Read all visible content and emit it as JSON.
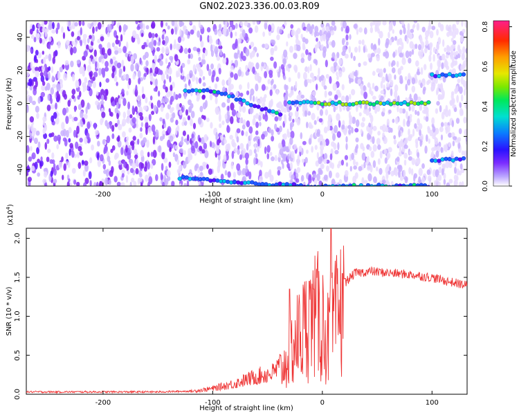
{
  "title": "GN02.2023.336.00.03.R09",
  "chart_data": [
    {
      "type": "heatmap",
      "xlabel": "Height of straight line (km)",
      "ylabel": "Frequency (Hz)",
      "xlim": [
        -270,
        132
      ],
      "ylim": [
        -50,
        50
      ],
      "x_ticks": [
        -200,
        -100,
        0,
        100
      ],
      "y_ticks": [
        -40,
        -20,
        0,
        20,
        40
      ],
      "colorbar": {
        "label": "Normalized spectral amplitude",
        "range": [
          0,
          0.83
        ],
        "ticks": [
          "0.0",
          "0.2",
          "0.4",
          "0.6",
          "0.8"
        ]
      },
      "features": [
        {
          "name": "main line",
          "points": [
            [
              -125,
              8
            ],
            [
              -95,
              7
            ],
            [
              -75,
              2
            ],
            [
              -55,
              -3
            ],
            [
              -35,
              -8
            ]
          ]
        },
        {
          "name": "zero line",
          "points": [
            [
              -30,
              1
            ],
            [
              0,
              0
            ],
            [
              50,
              0
            ],
            [
              100,
              0
            ]
          ]
        },
        {
          "name": "upper branch",
          "points": [
            [
              100,
              17
            ],
            [
              132,
              17
            ]
          ]
        },
        {
          "name": "lower branch",
          "points": [
            [
              100,
              -34
            ],
            [
              132,
              -34
            ]
          ]
        },
        {
          "name": "bottom band",
          "points": [
            [
              -130,
              -45
            ],
            [
              -80,
              -48
            ],
            [
              -10,
              -50
            ],
            [
              100,
              -50
            ]
          ]
        }
      ]
    },
    {
      "type": "line",
      "xlabel": "Height of straight line (km)",
      "ylabel": "SNR (10 * v/v)",
      "y_scale_label": "(x10",
      "y_scale_exp": "4",
      "y_scale_close": ")",
      "xlim": [
        -270,
        132
      ],
      "ylim": [
        0,
        2.13
      ],
      "x_ticks": [
        -200,
        -100,
        0,
        100
      ],
      "y_ticks": [
        "0.0",
        "0.5",
        "1.0",
        "1.5",
        "2.0"
      ],
      "color": "#ee3333",
      "envelope": [
        [
          -270,
          0.03
        ],
        [
          -200,
          0.03
        ],
        [
          -150,
          0.03
        ],
        [
          -120,
          0.04
        ],
        [
          -100,
          0.08
        ],
        [
          -80,
          0.15
        ],
        [
          -60,
          0.25
        ],
        [
          -45,
          0.3
        ],
        [
          -35,
          0.45
        ],
        [
          -25,
          0.85
        ],
        [
          -15,
          1.1
        ],
        [
          -5,
          1.25
        ],
        [
          0,
          1.2
        ],
        [
          5,
          0.9
        ],
        [
          10,
          1.1
        ],
        [
          15,
          1.3
        ],
        [
          20,
          1.45
        ],
        [
          30,
          1.58
        ],
        [
          45,
          1.6
        ],
        [
          60,
          1.58
        ],
        [
          80,
          1.56
        ],
        [
          100,
          1.52
        ],
        [
          115,
          1.47
        ],
        [
          132,
          1.42
        ]
      ],
      "peaks": [
        [
          -30,
          1.35
        ],
        [
          -12,
          1.45
        ],
        [
          -8,
          1.35
        ],
        [
          8,
          2.15
        ],
        [
          18,
          1.55
        ],
        [
          20,
          1.48
        ]
      ]
    }
  ]
}
